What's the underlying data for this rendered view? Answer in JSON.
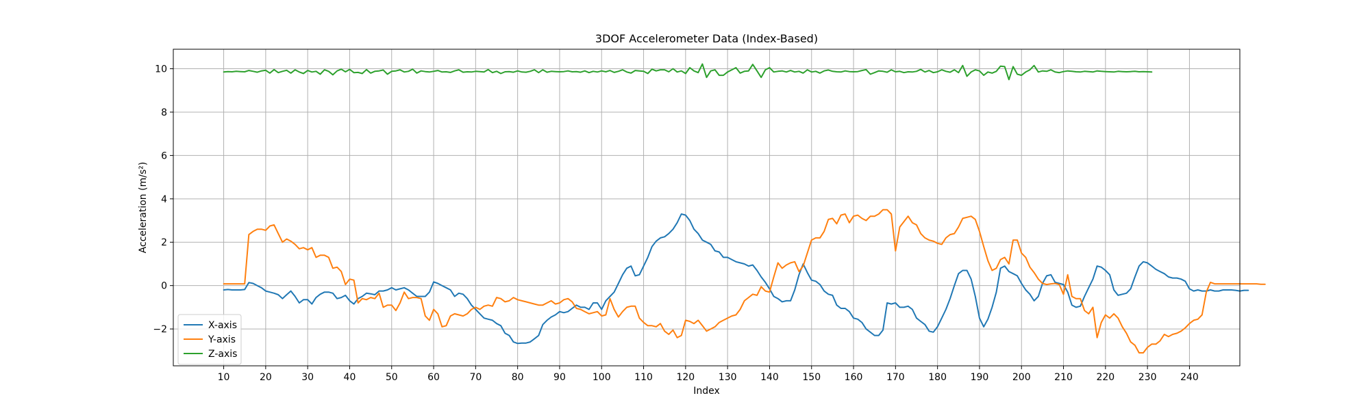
{
  "chart_data": {
    "type": "line",
    "title": "3DOF Accelerometer Data (Index-Based)",
    "xlabel": "Index",
    "ylabel": "Acceleration (m/s²)",
    "xlim": [
      -2,
      252
    ],
    "ylim": [
      -3.7,
      10.9
    ],
    "xticks": [
      10,
      20,
      30,
      40,
      50,
      60,
      70,
      80,
      90,
      100,
      110,
      120,
      130,
      140,
      150,
      160,
      170,
      180,
      190,
      200,
      210,
      220,
      230,
      240
    ],
    "xtick_labels": [
      "10",
      "20",
      "30",
      "40",
      "50",
      "60",
      "70",
      "80",
      "90",
      "100",
      "110",
      "120",
      "130",
      "140",
      "150",
      "160",
      "170",
      "180",
      "190",
      "200",
      "210",
      "220",
      "230",
      "240"
    ],
    "yticks": [
      -2,
      0,
      2,
      4,
      6,
      8,
      10
    ],
    "ytick_labels": [
      "−2",
      "0",
      "2",
      "4",
      "6",
      "8",
      "10"
    ],
    "grid": true,
    "legend_position": "lower-left",
    "x_start": 10,
    "x_step": 1,
    "series": [
      {
        "name": "X-axis",
        "color": "#1f77b4",
        "values": [
          -0.2,
          -0.18,
          -0.2,
          -0.2,
          -0.2,
          -0.18,
          0.14,
          0.1,
          0.0,
          -0.1,
          -0.25,
          -0.3,
          -0.35,
          -0.42,
          -0.6,
          -0.42,
          -0.25,
          -0.5,
          -0.8,
          -0.65,
          -0.65,
          -0.85,
          -0.55,
          -0.4,
          -0.3,
          -0.3,
          -0.35,
          -0.6,
          -0.55,
          -0.45,
          -0.7,
          -0.85,
          -0.6,
          -0.5,
          -0.35,
          -0.38,
          -0.42,
          -0.25,
          -0.25,
          -0.2,
          -0.1,
          -0.2,
          -0.15,
          -0.1,
          -0.2,
          -0.35,
          -0.5,
          -0.5,
          -0.5,
          -0.3,
          0.17,
          0.1,
          0.0,
          -0.1,
          -0.2,
          -0.5,
          -0.35,
          -0.4,
          -0.6,
          -0.9,
          -1.1,
          -1.3,
          -1.5,
          -1.55,
          -1.6,
          -1.75,
          -1.85,
          -2.2,
          -2.3,
          -2.6,
          -2.67,
          -2.65,
          -2.65,
          -2.6,
          -2.45,
          -2.3,
          -1.8,
          -1.6,
          -1.45,
          -1.35,
          -1.2,
          -1.25,
          -1.2,
          -1.05,
          -0.9,
          -1.0,
          -1.0,
          -1.1,
          -0.8,
          -0.8,
          -1.1,
          -0.7,
          -0.5,
          -0.3,
          0.1,
          0.5,
          0.8,
          0.9,
          0.45,
          0.5,
          0.9,
          1.3,
          1.8,
          2.05,
          2.2,
          2.25,
          2.4,
          2.6,
          2.9,
          3.3,
          3.25,
          3.0,
          2.6,
          2.4,
          2.1,
          2.0,
          1.9,
          1.6,
          1.55,
          1.3,
          1.3,
          1.2,
          1.1,
          1.05,
          1.0,
          0.9,
          0.95,
          0.7,
          0.4,
          0.15,
          -0.15,
          -0.5,
          -0.6,
          -0.75,
          -0.7,
          -0.7,
          -0.2,
          0.5,
          1.0,
          0.6,
          0.25,
          0.2,
          0.05,
          -0.25,
          -0.4,
          -0.45,
          -0.9,
          -1.05,
          -1.05,
          -1.2,
          -1.5,
          -1.55,
          -1.7,
          -2.0,
          -2.15,
          -2.3,
          -2.3,
          -2.05,
          -0.8,
          -0.85,
          -0.8,
          -1.0,
          -1.0,
          -0.95,
          -1.1,
          -1.5,
          -1.65,
          -1.8,
          -2.1,
          -2.15,
          -1.9,
          -1.5,
          -1.1,
          -0.6,
          0.0,
          0.55,
          0.7,
          0.7,
          0.3,
          -0.5,
          -1.5,
          -1.9,
          -1.55,
          -1.0,
          -0.3,
          0.8,
          0.9,
          0.65,
          0.55,
          0.45,
          0.1,
          -0.2,
          -0.4,
          -0.7,
          -0.5,
          0.1,
          0.45,
          0.5,
          0.15,
          0.1,
          0.05,
          -0.3,
          -0.9,
          -1.0,
          -0.95,
          -0.5,
          -0.1,
          0.3,
          0.9,
          0.85,
          0.7,
          0.5,
          -0.2,
          -0.45,
          -0.4,
          -0.35,
          -0.15,
          0.4,
          0.9,
          1.1,
          1.05,
          0.9,
          0.75,
          0.65,
          0.55,
          0.4,
          0.35,
          0.35,
          0.3,
          0.2,
          -0.15,
          -0.25,
          -0.2,
          -0.25,
          -0.25,
          -0.2,
          -0.25,
          -0.25,
          -0.2,
          -0.2,
          -0.2,
          -0.22,
          -0.25,
          -0.22,
          -0.22
        ]
      },
      {
        "name": "Y-axis",
        "color": "#ff7f0e",
        "values": [
          0.08,
          0.08,
          0.08,
          0.08,
          0.08,
          0.08,
          2.35,
          2.5,
          2.6,
          2.6,
          2.55,
          2.75,
          2.8,
          2.4,
          2.0,
          2.15,
          2.05,
          1.9,
          1.7,
          1.75,
          1.65,
          1.75,
          1.3,
          1.4,
          1.4,
          1.3,
          0.8,
          0.85,
          0.65,
          0.05,
          0.3,
          0.25,
          -0.8,
          -0.6,
          -0.65,
          -0.55,
          -0.6,
          -0.35,
          -1.0,
          -0.9,
          -0.9,
          -1.15,
          -0.8,
          -0.3,
          -0.6,
          -0.55,
          -0.55,
          -0.6,
          -1.4,
          -1.6,
          -1.1,
          -1.3,
          -1.9,
          -1.85,
          -1.4,
          -1.3,
          -1.35,
          -1.4,
          -1.3,
          -1.1,
          -1.0,
          -1.1,
          -0.95,
          -0.9,
          -0.95,
          -0.55,
          -0.6,
          -0.75,
          -0.7,
          -0.55,
          -0.65,
          -0.7,
          -0.75,
          -0.8,
          -0.85,
          -0.9,
          -0.9,
          -0.8,
          -0.7,
          -0.85,
          -0.8,
          -0.65,
          -0.6,
          -0.75,
          -1.05,
          -1.1,
          -1.2,
          -1.3,
          -1.25,
          -1.2,
          -1.4,
          -1.35,
          -0.6,
          -1.1,
          -1.45,
          -1.2,
          -1.0,
          -0.95,
          -0.95,
          -1.5,
          -1.7,
          -1.85,
          -1.85,
          -1.9,
          -1.75,
          -2.1,
          -2.25,
          -2.05,
          -2.4,
          -2.3,
          -1.6,
          -1.65,
          -1.75,
          -1.6,
          -1.85,
          -2.1,
          -2.0,
          -1.9,
          -1.7,
          -1.6,
          -1.5,
          -1.4,
          -1.35,
          -1.1,
          -0.7,
          -0.55,
          -0.4,
          -0.45,
          -0.05,
          -0.25,
          -0.3,
          0.4,
          1.05,
          0.8,
          0.95,
          1.05,
          1.1,
          0.65,
          0.9,
          1.5,
          2.1,
          2.2,
          2.2,
          2.5,
          3.05,
          3.1,
          2.85,
          3.25,
          3.3,
          2.9,
          3.2,
          3.25,
          3.1,
          3.0,
          3.2,
          3.2,
          3.3,
          3.5,
          3.5,
          3.3,
          1.6,
          2.7,
          2.95,
          3.2,
          2.9,
          2.8,
          2.4,
          2.2,
          2.1,
          2.05,
          1.95,
          1.9,
          2.2,
          2.35,
          2.4,
          2.7,
          3.1,
          3.15,
          3.2,
          3.05,
          2.5,
          1.8,
          1.15,
          0.7,
          0.8,
          1.2,
          1.3,
          1.0,
          2.1,
          2.1,
          1.5,
          1.3,
          0.85,
          0.6,
          0.3,
          0.1,
          0.05,
          0.08,
          0.1,
          0.05,
          -0.4,
          0.5,
          -0.5,
          -0.6,
          -0.6,
          -1.15,
          -1.3,
          -1.0,
          -2.4,
          -1.7,
          -1.35,
          -1.5,
          -1.3,
          -1.5,
          -1.9,
          -2.2,
          -2.6,
          -2.75,
          -3.1,
          -3.1,
          -2.85,
          -2.7,
          -2.7,
          -2.55,
          -2.25,
          -2.35,
          -2.25,
          -2.2,
          -2.1,
          -1.95,
          -1.75,
          -1.6,
          -1.55,
          -1.35,
          -0.3,
          0.15,
          0.08,
          0.08,
          0.08,
          0.08,
          0.08,
          0.08,
          0.08,
          0.08,
          0.08,
          0.08,
          0.08,
          0.06,
          0.06
        ]
      },
      {
        "name": "Z-axis",
        "color": "#2ca02c",
        "values": [
          9.85,
          9.87,
          9.86,
          9.88,
          9.87,
          9.86,
          9.92,
          9.88,
          9.84,
          9.9,
          9.93,
          9.8,
          9.96,
          9.82,
          9.88,
          9.93,
          9.8,
          9.95,
          9.85,
          9.78,
          9.92,
          9.85,
          9.88,
          9.75,
          9.95,
          9.88,
          9.72,
          9.9,
          9.98,
          9.86,
          9.97,
          9.82,
          9.83,
          9.78,
          9.96,
          9.8,
          9.88,
          9.9,
          9.94,
          9.75,
          9.88,
          9.9,
          9.95,
          9.85,
          9.88,
          9.98,
          9.8,
          9.9,
          9.87,
          9.85,
          9.88,
          9.92,
          9.85,
          9.86,
          9.83,
          9.9,
          9.95,
          9.84,
          9.86,
          9.85,
          9.88,
          9.87,
          9.85,
          9.96,
          9.82,
          9.88,
          9.78,
          9.86,
          9.87,
          9.84,
          9.9,
          9.85,
          9.84,
          9.88,
          9.95,
          9.82,
          9.95,
          9.84,
          9.88,
          9.87,
          9.86,
          9.87,
          9.9,
          9.86,
          9.87,
          9.84,
          9.9,
          9.82,
          9.88,
          9.85,
          9.9,
          9.86,
          9.92,
          9.83,
          9.88,
          9.95,
          9.85,
          9.8,
          9.92,
          9.9,
          9.88,
          9.78,
          9.98,
          9.9,
          9.95,
          9.95,
          9.86,
          10.0,
          9.85,
          9.9,
          9.78,
          10.05,
          9.9,
          9.82,
          10.22,
          9.6,
          9.9,
          9.95,
          9.7,
          9.7,
          9.85,
          9.95,
          10.05,
          9.8,
          9.88,
          9.9,
          10.2,
          9.9,
          9.6,
          9.95,
          10.05,
          9.85,
          9.88,
          9.9,
          9.85,
          9.92,
          9.85,
          9.88,
          9.8,
          9.95,
          9.85,
          9.88,
          9.8,
          9.9,
          9.94,
          9.88,
          9.86,
          9.85,
          9.9,
          9.87,
          9.86,
          9.87,
          9.92,
          9.96,
          9.75,
          9.82,
          9.9,
          9.88,
          9.84,
          9.95,
          9.86,
          9.88,
          9.82,
          9.86,
          9.85,
          9.88,
          9.97,
          9.85,
          9.92,
          9.82,
          9.86,
          9.95,
          9.88,
          9.84,
          9.95,
          9.82,
          10.15,
          9.65,
          9.85,
          9.95,
          9.9,
          9.7,
          9.85,
          9.8,
          9.88,
          10.12,
          10.1,
          9.5,
          10.1,
          9.75,
          9.7,
          9.85,
          9.95,
          10.15,
          9.85,
          9.9,
          9.88,
          9.95,
          9.85,
          9.82,
          9.87,
          9.9,
          9.88,
          9.86,
          9.85,
          9.88,
          9.87,
          9.85,
          9.9,
          9.88,
          9.87,
          9.86,
          9.85,
          9.88,
          9.87,
          9.86,
          9.87,
          9.88,
          9.86,
          9.87,
          9.86,
          9.85
        ]
      }
    ]
  }
}
